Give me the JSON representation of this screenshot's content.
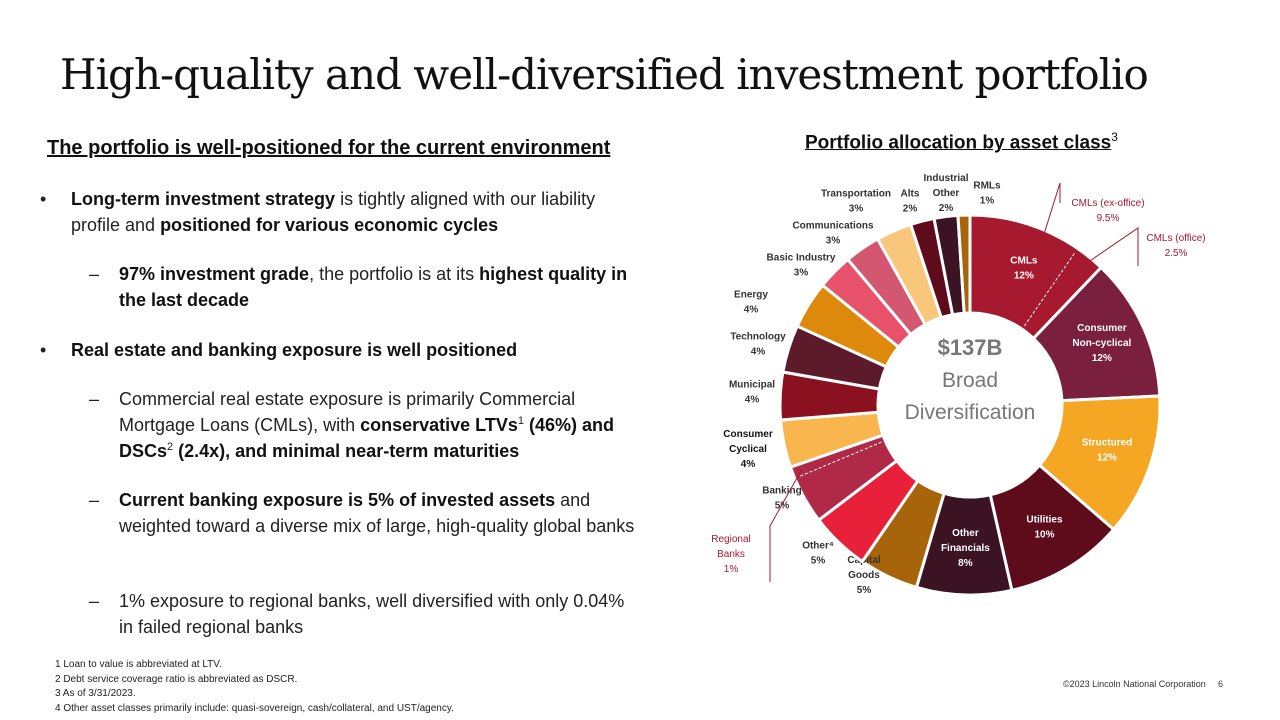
{
  "slide": {
    "title": "High-quality and well-diversified investment portfolio",
    "left_heading": "The portfolio is well-positioned for the current environment",
    "right_heading": "Portfolio allocation by asset class",
    "right_heading_sup": "3",
    "bullets": {
      "b1": {
        "marker": "•",
        "p1": "Long-term investment strategy",
        "p2": " is tightly aligned with our liability profile and ",
        "p3": "positioned for various economic cycles"
      },
      "b1s1": {
        "marker": "–",
        "p1": "97% investment grade",
        "p2": ", the portfolio is at its ",
        "p3": "highest quality in the last decade"
      },
      "b2": {
        "marker": "•",
        "p1": "Real estate and banking exposure is well positioned"
      },
      "b2s1": {
        "marker": "–",
        "p1": "Commercial real estate exposure is primarily Commercial Mortgage Loans (CMLs), with ",
        "p2": "conservative LTVs",
        "sup1": "1",
        "p3": " (46%) and DSCs",
        "sup2": "2",
        "p4": " (2.4x), and minimal near-term maturities"
      },
      "b2s2": {
        "marker": "–",
        "p1": "Current banking exposure is 5% of invested assets",
        "p2": " and weighted toward a diverse mix of large, high-quality global banks"
      },
      "b2s3": {
        "marker": "–",
        "p1": "1% exposure to regional banks, well diversified with only 0.04% in failed regional banks"
      }
    },
    "footnotes": [
      "1  Loan to value is abbreviated at LTV.",
      "2  Debt service coverage ratio is abbreviated as DSCR.",
      "3  As of 3/31/2023.",
      "4  Other asset classes primarily include: quasi-sovereign, cash/collateral, and UST/agency."
    ],
    "copyright": "©2023 Lincoln National Corporation",
    "page_number": "6"
  },
  "chart_data": {
    "type": "pie",
    "variant": "donut",
    "title": "Portfolio allocation by asset class",
    "center_text": [
      "$137B",
      "Broad",
      "Diversification"
    ],
    "slices": [
      {
        "label": "CMLs",
        "value": 12,
        "pct": "12%",
        "color": "#A6192E",
        "label_pos": "inside",
        "text_color": "#ffffff"
      },
      {
        "label": "Consumer Non-cyclical",
        "value": 12,
        "pct": "12%",
        "color": "#7A1F3D",
        "label_pos": "inside",
        "text_color": "#ffffff"
      },
      {
        "label": "Structured",
        "value": 12,
        "pct": "12%",
        "color": "#F5A623",
        "label_pos": "inside",
        "text_color": "#ffffff"
      },
      {
        "label": "Utilities",
        "value": 10,
        "pct": "10%",
        "color": "#5E0B1C",
        "label_pos": "inside",
        "text_color": "#ffffff"
      },
      {
        "label": "Other Financials",
        "value": 8,
        "pct": "8%",
        "color": "#3B1322",
        "label_pos": "inside",
        "text_color": "#ffffff"
      },
      {
        "label": "Capital Goods",
        "value": 5,
        "pct": "5%",
        "color": "#A8640A",
        "label_pos": "outside",
        "text_color": "#333333"
      },
      {
        "label": "Other⁴",
        "value": 5,
        "pct": "5%",
        "color": "#E8203A",
        "label_pos": "outside",
        "text_color": "#333333"
      },
      {
        "label": "Banking",
        "value": 5,
        "pct": "5%",
        "color": "#B02A48",
        "label_pos": "outside",
        "text_color": "#333333"
      },
      {
        "label": "Consumer Cyclical",
        "value": 4,
        "pct": "4%",
        "color": "#F9B54E",
        "label_pos": "outside",
        "text_color": "#111111"
      },
      {
        "label": "Municipal",
        "value": 4,
        "pct": "4%",
        "color": "#8B1020",
        "label_pos": "outside",
        "text_color": "#333333"
      },
      {
        "label": "Technology",
        "value": 4,
        "pct": "4%",
        "color": "#5C1A2B",
        "label_pos": "outside",
        "text_color": "#333333"
      },
      {
        "label": "Energy",
        "value": 4,
        "pct": "4%",
        "color": "#DD8A0C",
        "label_pos": "outside",
        "text_color": "#333333"
      },
      {
        "label": "Basic Industry",
        "value": 3,
        "pct": "3%",
        "color": "#E8516A",
        "label_pos": "outside",
        "text_color": "#333333"
      },
      {
        "label": "Communications",
        "value": 3,
        "pct": "3%",
        "color": "#D45772",
        "label_pos": "outside",
        "text_color": "#333333"
      },
      {
        "label": "Transportation",
        "value": 3,
        "pct": "3%",
        "color": "#F9C77B",
        "label_pos": "outside",
        "text_color": "#333333"
      },
      {
        "label": "Alts",
        "value": 2,
        "pct": "2%",
        "color": "#5E0B1C",
        "label_pos": "outside",
        "text_color": "#333333"
      },
      {
        "label": "Industrial Other",
        "value": 2,
        "pct": "2%",
        "color": "#3B1322",
        "label_pos": "outside",
        "text_color": "#333333"
      },
      {
        "label": "RMLs",
        "value": 1,
        "pct": "1%",
        "color": "#A8640A",
        "label_pos": "outside",
        "text_color": "#333333"
      }
    ],
    "callouts": [
      {
        "label": "CMLs (ex-office)",
        "pct": "9.5%"
      },
      {
        "label": "CMLs (office)",
        "pct": "2.5%"
      },
      {
        "label": "Regional Banks",
        "pct": "1%"
      }
    ],
    "callout_color": "#A6192E"
  }
}
